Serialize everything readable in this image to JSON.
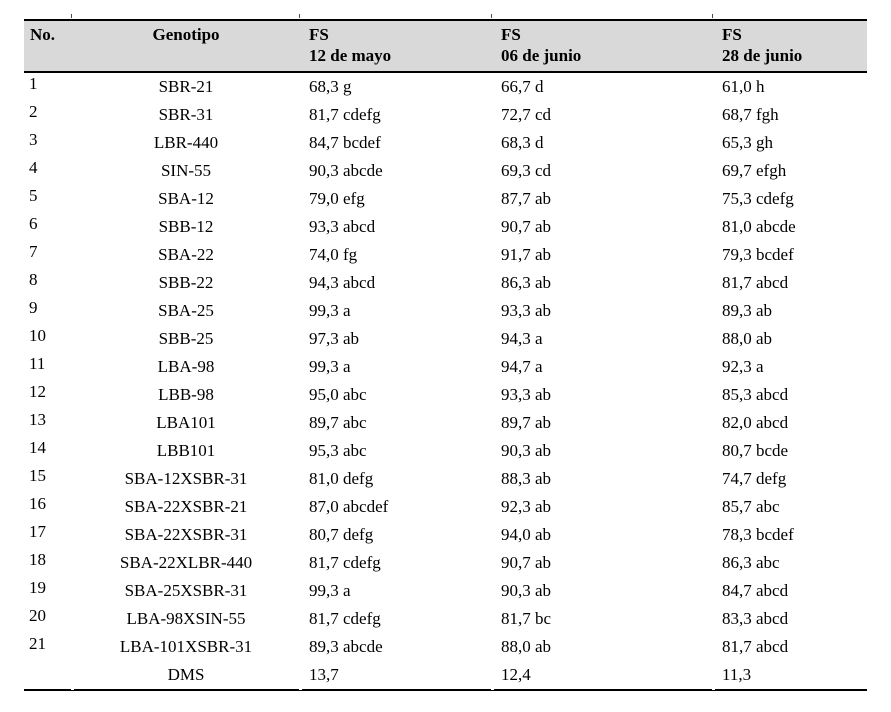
{
  "table": {
    "headers": [
      {
        "line1": "No.",
        "line2": ""
      },
      {
        "line1": "Genotipo",
        "line2": ""
      },
      {
        "line1": "FS",
        "line2": "12 de mayo"
      },
      {
        "line1": "FS",
        "line2": "06 de junio"
      },
      {
        "line1": "FS",
        "line2": "28 de junio"
      }
    ],
    "rows": [
      {
        "no": "1",
        "genotipo": "SBR-21",
        "fs_12_mayo": "68,3 g",
        "fs_06_junio": "66,7 d",
        "fs_28_junio": "61,0 h"
      },
      {
        "no": "2",
        "genotipo": "SBR-31",
        "fs_12_mayo": "81,7 cdefg",
        "fs_06_junio": "72,7 cd",
        "fs_28_junio": "68,7 fgh"
      },
      {
        "no": "3",
        "genotipo": "LBR-440",
        "fs_12_mayo": "84,7 bcdef",
        "fs_06_junio": "68,3 d",
        "fs_28_junio": "65,3 gh"
      },
      {
        "no": "4",
        "genotipo": "SIN-55",
        "fs_12_mayo": "90,3 abcde",
        "fs_06_junio": "69,3 cd",
        "fs_28_junio": "69,7 efgh"
      },
      {
        "no": "5",
        "genotipo": "SBA-12",
        "fs_12_mayo": "79,0 efg",
        "fs_06_junio": "87,7 ab",
        "fs_28_junio": "75,3 cdefg"
      },
      {
        "no": "6",
        "genotipo": "SBB-12",
        "fs_12_mayo": "93,3 abcd",
        "fs_06_junio": "90,7 ab",
        "fs_28_junio": "81,0 abcde"
      },
      {
        "no": "7",
        "genotipo": "SBA-22",
        "fs_12_mayo": "74,0 fg",
        "fs_06_junio": "91,7 ab",
        "fs_28_junio": "79,3 bcdef"
      },
      {
        "no": "8",
        "genotipo": "SBB-22",
        "fs_12_mayo": "94,3 abcd",
        "fs_06_junio": "86,3 ab",
        "fs_28_junio": "81,7 abcd"
      },
      {
        "no": "9",
        "genotipo": "SBA-25",
        "fs_12_mayo": "99,3 a",
        "fs_06_junio": "93,3 ab",
        "fs_28_junio": "89,3 ab"
      },
      {
        "no": "10",
        "genotipo": "SBB-25",
        "fs_12_mayo": "97,3 ab",
        "fs_06_junio": "94,3 a",
        "fs_28_junio": "88,0 ab"
      },
      {
        "no": "11",
        "genotipo": "LBA-98",
        "fs_12_mayo": "99,3 a",
        "fs_06_junio": "94,7 a",
        "fs_28_junio": "92,3 a"
      },
      {
        "no": "12",
        "genotipo": "LBB-98",
        "fs_12_mayo": "95,0 abc",
        "fs_06_junio": "93,3 ab",
        "fs_28_junio": "85,3 abcd"
      },
      {
        "no": "13",
        "genotipo": "LBA101",
        "fs_12_mayo": "89,7 abc",
        "fs_06_junio": "89,7 ab",
        "fs_28_junio": "82,0 abcd"
      },
      {
        "no": "14",
        "genotipo": "LBB101",
        "fs_12_mayo": "95,3 abc",
        "fs_06_junio": "90,3 ab",
        "fs_28_junio": "80,7 bcde"
      },
      {
        "no": "15",
        "genotipo": "SBA-12XSBR-31",
        "fs_12_mayo": "81,0 defg",
        "fs_06_junio": "88,3 ab",
        "fs_28_junio": "74,7 defg"
      },
      {
        "no": "16",
        "genotipo": "SBA-22XSBR-21",
        "fs_12_mayo": "87,0 abcdef",
        "fs_06_junio": "92,3 ab",
        "fs_28_junio": "85,7 abc"
      },
      {
        "no": "17",
        "genotipo": "SBA-22XSBR-31",
        "fs_12_mayo": "80,7 defg",
        "fs_06_junio": "94,0 ab",
        "fs_28_junio": "78,3 bcdef"
      },
      {
        "no": "18",
        "genotipo": "SBA-22XLBR-440",
        "fs_12_mayo": "81,7 cdefg",
        "fs_06_junio": "90,7 ab",
        "fs_28_junio": "86,3 abc"
      },
      {
        "no": "19",
        "genotipo": "SBA-25XSBR-31",
        "fs_12_mayo": "99,3 a",
        "fs_06_junio": "90,3 ab",
        "fs_28_junio": "84,7 abcd"
      },
      {
        "no": "20",
        "genotipo": "LBA-98XSIN-55",
        "fs_12_mayo": "81,7 cdefg",
        "fs_06_junio": "81,7 bc",
        "fs_28_junio": "83,3 abcd"
      },
      {
        "no": "21",
        "genotipo": "LBA-101XSBR-31",
        "fs_12_mayo": "89,3 abcde",
        "fs_06_junio": "88,0 ab",
        "fs_28_junio": "81,7 abcd"
      }
    ],
    "footer": {
      "no": "",
      "label": "DMS",
      "fs_12_mayo": "13,7",
      "fs_06_junio": "12,4",
      "fs_28_junio": "11,3"
    }
  },
  "colors": {
    "header_bg": "#d9d9d9",
    "border": "#000000",
    "text": "#000000",
    "page_bg": "#ffffff"
  }
}
